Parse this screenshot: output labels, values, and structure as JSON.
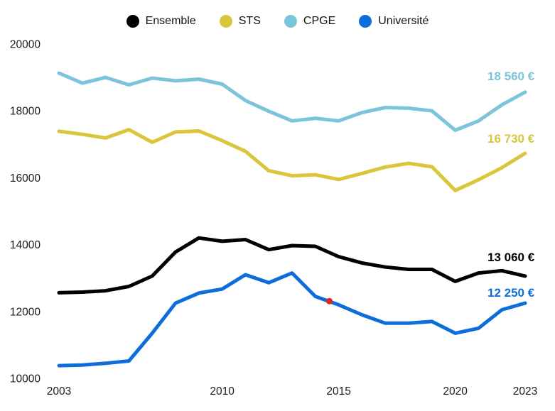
{
  "colors": {
    "background": "#ffffff",
    "text": "#1a1a1a",
    "annotation_red": "#e0251c"
  },
  "legend": {
    "items": [
      {
        "label": "Ensemble",
        "color": "#000000"
      },
      {
        "label": "STS",
        "color": "#d9c63c"
      },
      {
        "label": "CPGE",
        "color": "#7cc4dc"
      },
      {
        "label": "Université",
        "color": "#0d6edb"
      }
    ]
  },
  "chart_data": {
    "type": "line",
    "title": "",
    "xlabel": "",
    "ylabel": "",
    "grid": false,
    "legend_position": "top-center",
    "x": [
      2003,
      2004,
      2005,
      2006,
      2007,
      2008,
      2009,
      2010,
      2011,
      2012,
      2013,
      2014,
      2015,
      2016,
      2017,
      2018,
      2019,
      2020,
      2021,
      2022,
      2023
    ],
    "xlim": [
      2003,
      2023
    ],
    "ylim": [
      10000,
      20000
    ],
    "yticks": [
      20000,
      18000,
      16000,
      14000,
      12000,
      10000
    ],
    "ytick_labels": [
      "20000",
      "18000",
      "16000",
      "14000",
      "12000",
      "10000"
    ],
    "xticks": [
      2003,
      2010,
      2015,
      2020,
      2023
    ],
    "xtick_labels": [
      "2003",
      "2010",
      "2015",
      "2020",
      "2023"
    ],
    "series": [
      {
        "name": "CPGE",
        "color": "#7cc4dc",
        "end_label": "18 560 €",
        "values": [
          19130,
          18830,
          19000,
          18780,
          18980,
          18900,
          18950,
          18800,
          18310,
          17990,
          17700,
          17780,
          17700,
          17950,
          18100,
          18080,
          18000,
          17420,
          17700,
          18180,
          18560
        ]
      },
      {
        "name": "STS",
        "color": "#d9c63c",
        "end_label": "16 730 €",
        "values": [
          17390,
          17300,
          17190,
          17440,
          17060,
          17370,
          17400,
          17110,
          16790,
          16210,
          16060,
          16090,
          15950,
          16130,
          16320,
          16430,
          16330,
          15620,
          15940,
          16300,
          16730
        ]
      },
      {
        "name": "Ensemble",
        "color": "#000000",
        "end_label": "13 060 €",
        "values": [
          12560,
          12580,
          12620,
          12750,
          13060,
          13780,
          14200,
          14100,
          14150,
          13850,
          13970,
          13950,
          13640,
          13450,
          13330,
          13260,
          13260,
          12900,
          13150,
          13220,
          13060
        ]
      },
      {
        "name": "Université",
        "color": "#0d6edb",
        "end_label": "12 250 €",
        "values": [
          10380,
          10400,
          10450,
          10520,
          11350,
          12250,
          12550,
          12670,
          13100,
          12860,
          13150,
          12450,
          12200,
          11900,
          11650,
          11650,
          11700,
          11350,
          11500,
          12050,
          12250
        ]
      }
    ],
    "annotations": [
      {
        "type": "point",
        "series": "Université",
        "x": 2014.6,
        "value": 12310,
        "color": "#e0251c"
      }
    ]
  }
}
